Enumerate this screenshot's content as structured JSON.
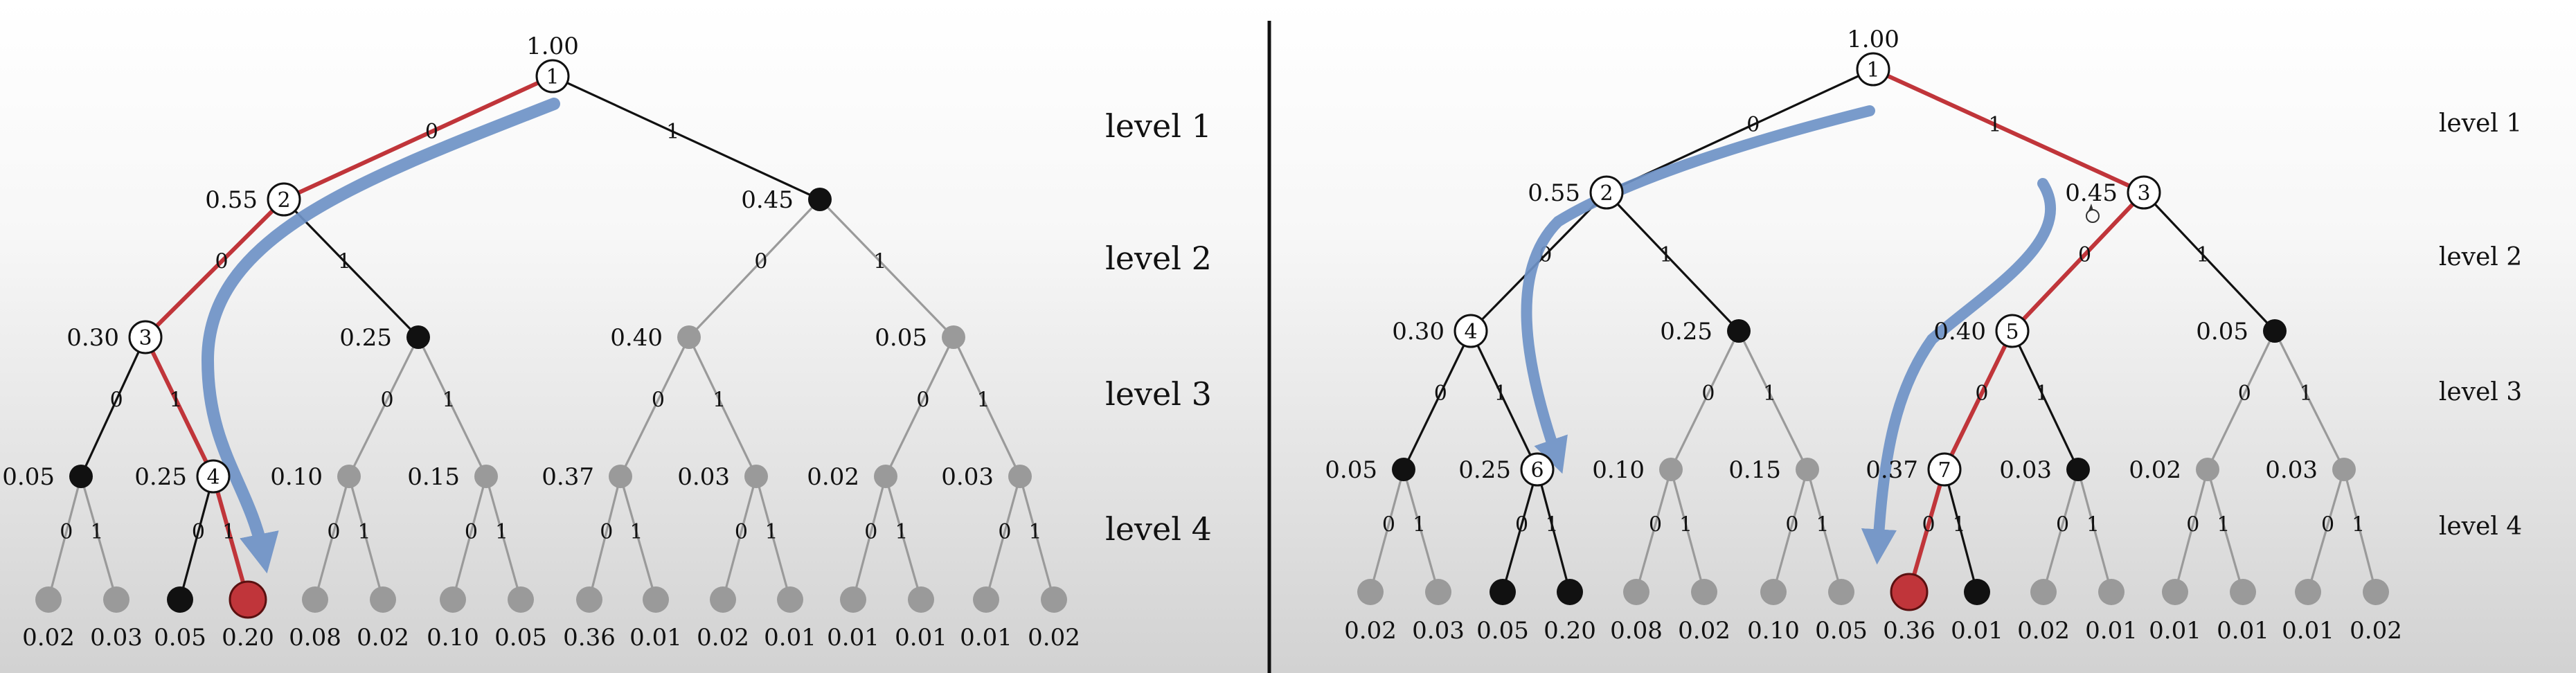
{
  "colors": {
    "path_red": "#c0353a",
    "arrow_blue": "#6f93c7",
    "active_node": "#111111",
    "inactive_node": "#9a9a9a",
    "leaf_selected": "#c0353a"
  },
  "panels": [
    {
      "root": {
        "prob": "1.00",
        "id": "1"
      },
      "levels": [
        "level 1",
        "level 2",
        "level 3",
        "level 4"
      ],
      "level2_probs": [
        "0.55",
        "0.45"
      ],
      "level2_ids": [
        "2",
        ""
      ],
      "level3_probs": [
        "0.30",
        "0.25",
        "0.40",
        "0.05"
      ],
      "level3_ids": [
        "3",
        "",
        "",
        ""
      ],
      "level4_probs": [
        "0.05",
        "0.25",
        "0.10",
        "0.15",
        "0.37",
        "0.03",
        "0.02",
        "0.03"
      ],
      "level4_ids": [
        "",
        "4",
        "",
        "",
        "",
        "",
        "",
        ""
      ],
      "leaf_probs": [
        "0.02",
        "0.03",
        "0.05",
        "0.20",
        "0.08",
        "0.02",
        "0.10",
        "0.05",
        "0.36",
        "0.01",
        "0.02",
        "0.01",
        "0.01",
        "0.01",
        "0.01",
        "0.02"
      ],
      "leaf_states": [
        "gray",
        "gray",
        "black",
        "red",
        "gray",
        "gray",
        "gray",
        "gray",
        "gray",
        "gray",
        "gray",
        "gray",
        "gray",
        "gray",
        "gray",
        "gray"
      ],
      "level2_states": [
        "open",
        "black"
      ],
      "level3_states": [
        "open",
        "black",
        "gray",
        "gray"
      ],
      "level4_states": [
        "black",
        "open",
        "gray",
        "gray",
        "gray",
        "gray",
        "gray",
        "gray"
      ],
      "edge_labels": {
        "zero": "0",
        "one": "1"
      },
      "red_path": [
        0,
        0,
        1,
        1
      ],
      "black_edges": [
        "root-0",
        "root-1",
        "l2-0-1",
        "l3-0-0",
        "l4-1-0"
      ]
    },
    {
      "root": {
        "prob": "1.00",
        "id": "1"
      },
      "levels": [
        "level 1",
        "level 2",
        "level 3",
        "level 4"
      ],
      "level2_probs": [
        "0.55",
        "0.45"
      ],
      "level2_ids": [
        "2",
        "3"
      ],
      "level3_probs": [
        "0.30",
        "0.25",
        "0.40",
        "0.05"
      ],
      "level3_ids": [
        "4",
        "",
        "5",
        ""
      ],
      "level4_probs": [
        "0.05",
        "0.25",
        "0.10",
        "0.15",
        "0.37",
        "0.03",
        "0.02",
        "0.03"
      ],
      "level4_ids": [
        "",
        "6",
        "",
        "",
        "7",
        "",
        "",
        ""
      ],
      "leaf_probs": [
        "0.02",
        "0.03",
        "0.05",
        "0.20",
        "0.08",
        "0.02",
        "0.10",
        "0.05",
        "0.36",
        "0.01",
        "0.02",
        "0.01",
        "0.01",
        "0.01",
        "0.01",
        "0.02"
      ],
      "leaf_states": [
        "gray",
        "gray",
        "black",
        "black",
        "gray",
        "gray",
        "gray",
        "gray",
        "red",
        "black",
        "gray",
        "gray",
        "gray",
        "gray",
        "gray",
        "gray"
      ],
      "level2_states": [
        "open",
        "open"
      ],
      "level3_states": [
        "open",
        "black",
        "open",
        "black"
      ],
      "level4_states": [
        "black",
        "open",
        "gray",
        "gray",
        "open",
        "black",
        "gray",
        "gray"
      ],
      "edge_labels": {
        "zero": "0",
        "one": "1"
      },
      "red_path": [
        1,
        0,
        0,
        0
      ]
    }
  ]
}
